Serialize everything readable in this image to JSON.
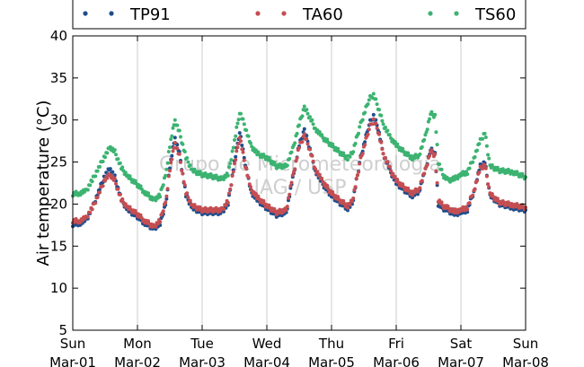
{
  "chart_data": {
    "type": "scatter",
    "title": "",
    "ylabel": "Air temperature (°C)",
    "xlabel": "",
    "ylim": [
      5,
      40
    ],
    "xlim": [
      0,
      7
    ],
    "y_ticks": [
      5,
      10,
      15,
      20,
      25,
      30,
      35,
      40
    ],
    "x_ticks": [
      {
        "x": 0,
        "line1": "Sun",
        "line2": "Mar-01"
      },
      {
        "x": 1,
        "line1": "Mon",
        "line2": "Mar-02"
      },
      {
        "x": 2,
        "line1": "Tue",
        "line2": "Mar-03"
      },
      {
        "x": 3,
        "line1": "Wed",
        "line2": "Mar-04"
      },
      {
        "x": 4,
        "line1": "Thu",
        "line2": "Mar-05"
      },
      {
        "x": 5,
        "line1": "Fri",
        "line2": "Mar-06"
      },
      {
        "x": 6,
        "line1": "Sat",
        "line2": "Mar-07"
      },
      {
        "x": 7,
        "line1": "Sun",
        "line2": "Mar-08"
      }
    ],
    "x_unit_note": "days since Mar-01 00:00",
    "grid": "vertical lines at day boundaries",
    "legend_position": "top",
    "watermark": [
      "Grupo de Micrometeorologia",
      "IAG / USP"
    ],
    "series": [
      {
        "name": "TP91",
        "color": "#1f4e8c",
        "points": [
          [
            0.0,
            17.6
          ],
          [
            0.1,
            17.7
          ],
          [
            0.2,
            18.0
          ],
          [
            0.3,
            19.5
          ],
          [
            0.4,
            21.5
          ],
          [
            0.5,
            23.5
          ],
          [
            0.58,
            24.2
          ],
          [
            0.65,
            23.2
          ],
          [
            0.75,
            20.5
          ],
          [
            0.85,
            19.3
          ],
          [
            1.0,
            18.5
          ],
          [
            1.1,
            17.8
          ],
          [
            1.25,
            17.1
          ],
          [
            1.35,
            17.6
          ],
          [
            1.45,
            20.5
          ],
          [
            1.5,
            24.5
          ],
          [
            1.58,
            27.9
          ],
          [
            1.65,
            26.0
          ],
          [
            1.75,
            21.0
          ],
          [
            1.85,
            19.5
          ],
          [
            2.0,
            19.0
          ],
          [
            2.15,
            19.0
          ],
          [
            2.3,
            19.0
          ],
          [
            2.4,
            20.0
          ],
          [
            2.5,
            25.0
          ],
          [
            2.58,
            28.7
          ],
          [
            2.65,
            25.5
          ],
          [
            2.75,
            21.5
          ],
          [
            2.85,
            20.5
          ],
          [
            3.0,
            19.5
          ],
          [
            3.15,
            18.7
          ],
          [
            3.3,
            19.0
          ],
          [
            3.4,
            23.0
          ],
          [
            3.5,
            27.0
          ],
          [
            3.58,
            28.8
          ],
          [
            3.65,
            27.0
          ],
          [
            3.75,
            24.0
          ],
          [
            3.85,
            22.5
          ],
          [
            4.0,
            21.0
          ],
          [
            4.15,
            20.0
          ],
          [
            4.25,
            19.5
          ],
          [
            4.32,
            20.0
          ],
          [
            4.45,
            25.5
          ],
          [
            4.58,
            29.5
          ],
          [
            4.65,
            30.5
          ],
          [
            4.72,
            29.0
          ],
          [
            4.8,
            26.0
          ],
          [
            4.9,
            24.0
          ],
          [
            5.0,
            22.5
          ],
          [
            5.15,
            21.5
          ],
          [
            5.25,
            21.0
          ],
          [
            5.35,
            21.5
          ],
          [
            5.45,
            24.0
          ],
          [
            5.53,
            26.5
          ],
          [
            5.6,
            26.0
          ],
          [
            5.65,
            20.0
          ],
          [
            5.72,
            19.5
          ],
          [
            5.8,
            19.2
          ],
          [
            5.9,
            18.8
          ],
          [
            6.0,
            19.0
          ],
          [
            6.1,
            19.3
          ],
          [
            6.2,
            21.5
          ],
          [
            6.3,
            24.5
          ],
          [
            6.37,
            25.0
          ],
          [
            6.45,
            21.0
          ],
          [
            6.6,
            20.0
          ],
          [
            6.8,
            19.6
          ],
          [
            7.0,
            19.3
          ]
        ]
      },
      {
        "name": "TA60",
        "color": "#c44e52",
        "points": [
          [
            0.0,
            18.0
          ],
          [
            0.1,
            18.0
          ],
          [
            0.2,
            18.3
          ],
          [
            0.3,
            19.5
          ],
          [
            0.4,
            21.2
          ],
          [
            0.5,
            23.0
          ],
          [
            0.58,
            23.5
          ],
          [
            0.65,
            22.8
          ],
          [
            0.75,
            20.5
          ],
          [
            0.85,
            19.6
          ],
          [
            1.0,
            18.8
          ],
          [
            1.1,
            18.1
          ],
          [
            1.25,
            17.3
          ],
          [
            1.35,
            18.0
          ],
          [
            1.45,
            20.8
          ],
          [
            1.5,
            24.2
          ],
          [
            1.58,
            27.3
          ],
          [
            1.65,
            25.7
          ],
          [
            1.75,
            21.3
          ],
          [
            1.85,
            19.8
          ],
          [
            2.0,
            19.3
          ],
          [
            2.15,
            19.3
          ],
          [
            2.3,
            19.3
          ],
          [
            2.4,
            20.3
          ],
          [
            2.5,
            24.7
          ],
          [
            2.58,
            28.1
          ],
          [
            2.65,
            25.2
          ],
          [
            2.75,
            21.8
          ],
          [
            2.85,
            20.8
          ],
          [
            3.0,
            19.8
          ],
          [
            3.15,
            19.0
          ],
          [
            3.3,
            19.3
          ],
          [
            3.4,
            23.2
          ],
          [
            3.5,
            26.8
          ],
          [
            3.58,
            28.2
          ],
          [
            3.65,
            26.8
          ],
          [
            3.75,
            24.2
          ],
          [
            3.85,
            22.8
          ],
          [
            4.0,
            21.3
          ],
          [
            4.15,
            20.3
          ],
          [
            4.25,
            19.8
          ],
          [
            4.32,
            20.3
          ],
          [
            4.45,
            25.3
          ],
          [
            4.58,
            29.0
          ],
          [
            4.65,
            30.0
          ],
          [
            4.72,
            28.7
          ],
          [
            4.8,
            26.0
          ],
          [
            4.9,
            24.2
          ],
          [
            5.0,
            22.8
          ],
          [
            5.15,
            21.8
          ],
          [
            5.25,
            21.3
          ],
          [
            5.35,
            21.8
          ],
          [
            5.45,
            24.0
          ],
          [
            5.53,
            26.3
          ],
          [
            5.6,
            25.8
          ],
          [
            5.65,
            20.5
          ],
          [
            5.72,
            19.8
          ],
          [
            5.8,
            19.5
          ],
          [
            5.9,
            19.1
          ],
          [
            6.0,
            19.3
          ],
          [
            6.1,
            19.6
          ],
          [
            6.2,
            21.6
          ],
          [
            6.3,
            24.2
          ],
          [
            6.37,
            24.7
          ],
          [
            6.45,
            21.2
          ],
          [
            6.6,
            20.2
          ],
          [
            6.8,
            19.9
          ],
          [
            7.0,
            19.6
          ]
        ]
      },
      {
        "name": "TS60",
        "color": "#3cb371",
        "points": [
          [
            0.0,
            21.2
          ],
          [
            0.1,
            21.3
          ],
          [
            0.2,
            21.5
          ],
          [
            0.3,
            22.8
          ],
          [
            0.4,
            24.3
          ],
          [
            0.5,
            25.8
          ],
          [
            0.58,
            26.8
          ],
          [
            0.65,
            26.2
          ],
          [
            0.75,
            24.3
          ],
          [
            0.85,
            23.3
          ],
          [
            1.0,
            22.3
          ],
          [
            1.1,
            21.5
          ],
          [
            1.25,
            20.5
          ],
          [
            1.35,
            21.0
          ],
          [
            1.45,
            24.0
          ],
          [
            1.5,
            27.0
          ],
          [
            1.58,
            30.0
          ],
          [
            1.65,
            28.5
          ],
          [
            1.75,
            25.5
          ],
          [
            1.85,
            24.0
          ],
          [
            2.0,
            23.5
          ],
          [
            2.15,
            23.3
          ],
          [
            2.3,
            23.0
          ],
          [
            2.4,
            23.5
          ],
          [
            2.5,
            27.5
          ],
          [
            2.58,
            31.0
          ],
          [
            2.65,
            29.5
          ],
          [
            2.75,
            27.0
          ],
          [
            2.85,
            26.0
          ],
          [
            3.0,
            25.5
          ],
          [
            3.15,
            24.5
          ],
          [
            3.3,
            24.5
          ],
          [
            3.4,
            26.5
          ],
          [
            3.5,
            29.5
          ],
          [
            3.58,
            31.5
          ],
          [
            3.65,
            30.5
          ],
          [
            3.75,
            29.0
          ],
          [
            3.85,
            28.0
          ],
          [
            4.0,
            27.0
          ],
          [
            4.15,
            26.0
          ],
          [
            4.25,
            25.5
          ],
          [
            4.32,
            26.0
          ],
          [
            4.45,
            29.5
          ],
          [
            4.58,
            32.5
          ],
          [
            4.65,
            33.0
          ],
          [
            4.72,
            31.5
          ],
          [
            4.8,
            29.5
          ],
          [
            4.9,
            28.0
          ],
          [
            5.0,
            27.0
          ],
          [
            5.15,
            26.0
          ],
          [
            5.25,
            25.5
          ],
          [
            5.35,
            25.8
          ],
          [
            5.45,
            28.0
          ],
          [
            5.53,
            30.8
          ],
          [
            5.6,
            30.5
          ],
          [
            5.65,
            25.0
          ],
          [
            5.72,
            23.5
          ],
          [
            5.8,
            22.8
          ],
          [
            5.9,
            23.0
          ],
          [
            6.0,
            23.5
          ],
          [
            6.1,
            23.8
          ],
          [
            6.2,
            25.5
          ],
          [
            6.3,
            27.5
          ],
          [
            6.37,
            28.5
          ],
          [
            6.45,
            24.5
          ],
          [
            6.6,
            24.0
          ],
          [
            6.8,
            23.8
          ],
          [
            7.0,
            23.2
          ]
        ]
      }
    ]
  }
}
